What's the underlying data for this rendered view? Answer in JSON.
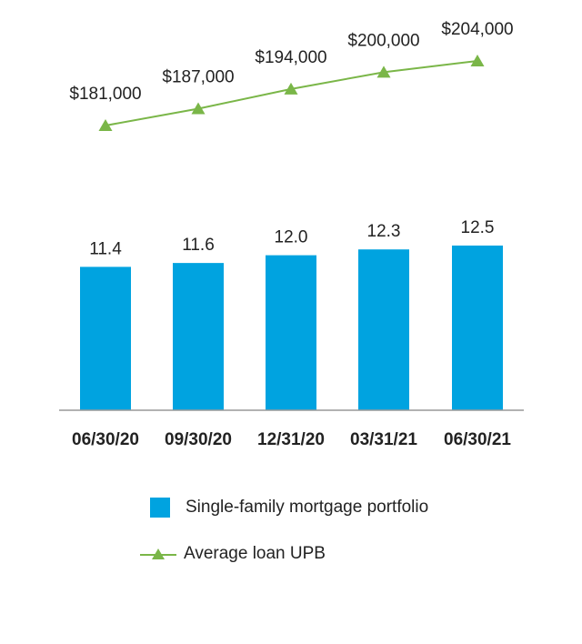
{
  "chart_data": {
    "type": "bar",
    "categories": [
      "06/30/20",
      "09/30/20",
      "12/31/20",
      "03/31/21",
      "06/30/21"
    ],
    "series": [
      {
        "name": "Single-family mortgage portfolio",
        "type": "bar",
        "values": [
          11.4,
          11.6,
          12.0,
          12.3,
          12.5
        ],
        "value_labels": [
          "11.4",
          "11.6",
          "12.0",
          "12.3",
          "12.5"
        ],
        "color": "#00a3e0"
      },
      {
        "name": "Average loan UPB",
        "type": "line",
        "marker": "triangle",
        "values": [
          181000,
          187000,
          194000,
          200000,
          204000
        ],
        "value_labels": [
          "$181,000",
          "$187,000",
          "$194,000",
          "$200,000",
          "$204,000"
        ],
        "color": "#7ab648"
      }
    ],
    "legend_position": "bottom",
    "grid": false
  }
}
